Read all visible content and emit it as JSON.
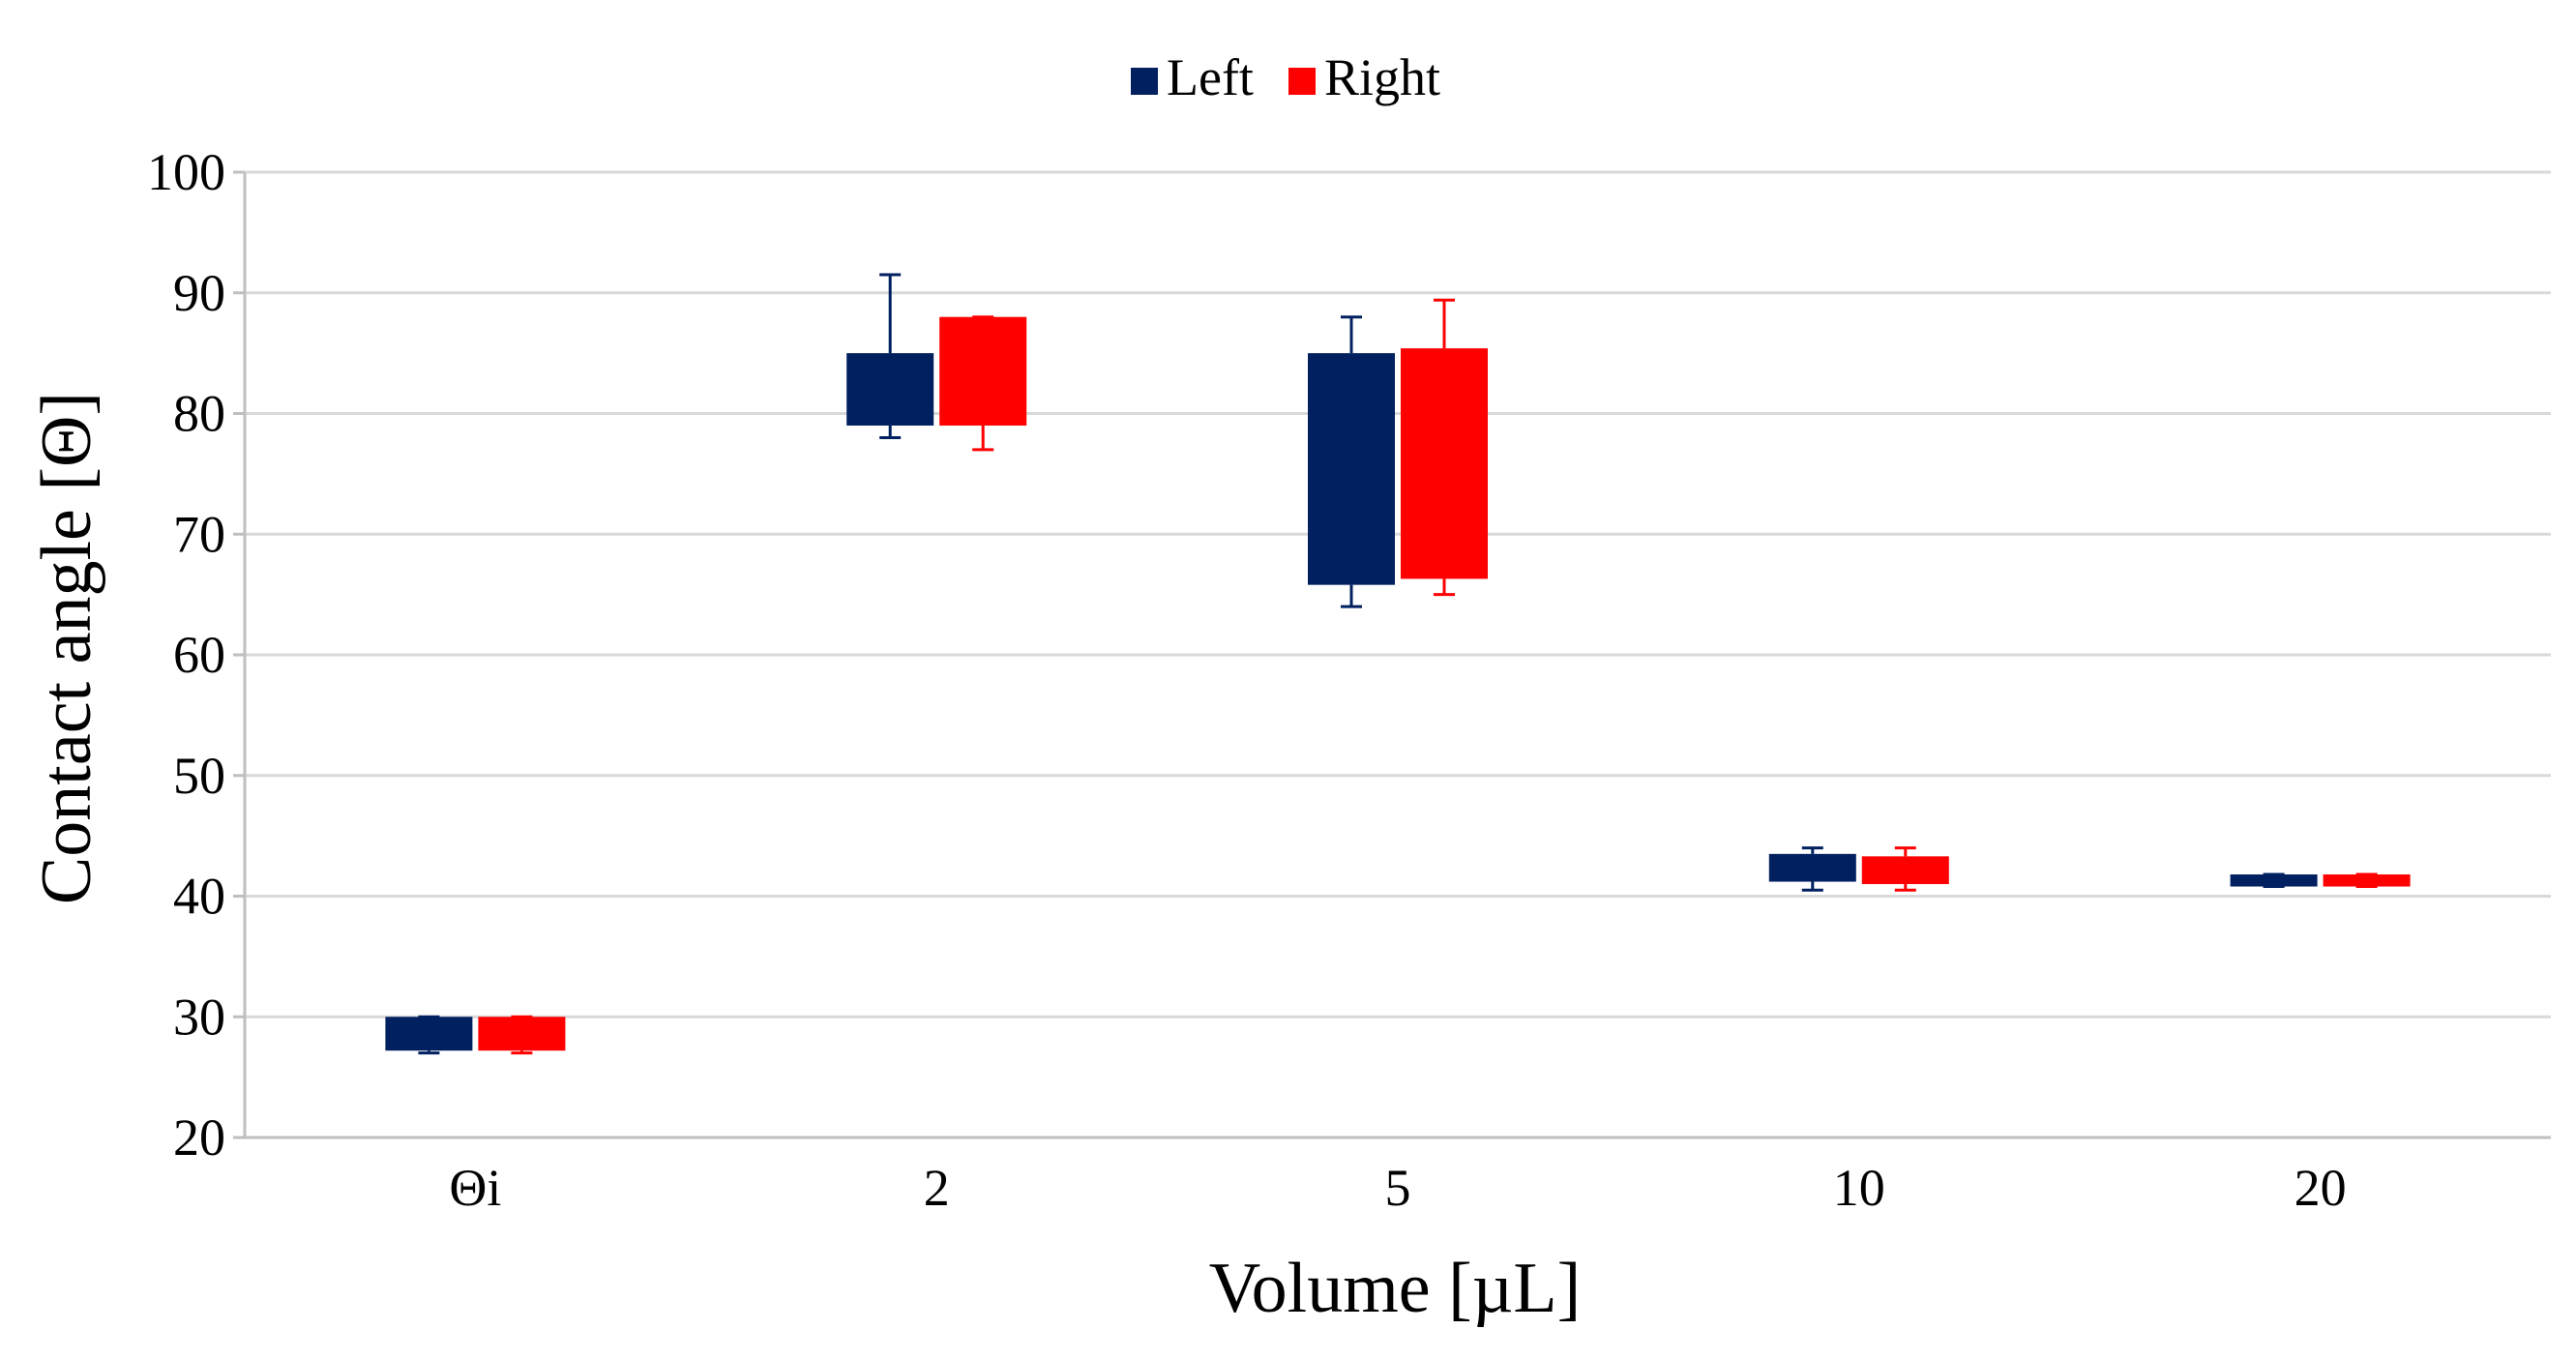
{
  "chart_data": {
    "type": "box",
    "title": "",
    "xlabel": "Volume [µL]",
    "ylabel": "Contact angle [Θ]",
    "ylim": [
      20,
      100
    ],
    "yticks": [
      "20",
      "30",
      "40",
      "50",
      "60",
      "70",
      "80",
      "90",
      "100"
    ],
    "categories": [
      "Θi",
      "2",
      "5",
      "10",
      "20"
    ],
    "grid": true,
    "legend_position": "top-center",
    "series": [
      {
        "name": "Left",
        "color": "#002060",
        "boxes": [
          {
            "min": 27.0,
            "q1": 27.2,
            "q3": 30.0,
            "max": 30.0
          },
          {
            "min": 78.0,
            "q1": 79.0,
            "q3": 85.0,
            "max": 91.5
          },
          {
            "min": 64.0,
            "q1": 65.8,
            "q3": 85.0,
            "max": 88.0
          },
          {
            "min": 40.5,
            "q1": 41.2,
            "q3": 43.5,
            "max": 44.0
          },
          {
            "min": 40.8,
            "q1": 40.8,
            "q3": 41.8,
            "max": 41.8
          }
        ]
      },
      {
        "name": "Right",
        "color": "#ff0000",
        "boxes": [
          {
            "min": 27.0,
            "q1": 27.2,
            "q3": 30.0,
            "max": 30.0
          },
          {
            "min": 77.0,
            "q1": 79.0,
            "q3": 88.0,
            "max": 88.0
          },
          {
            "min": 65.0,
            "q1": 66.3,
            "q3": 85.4,
            "max": 89.4
          },
          {
            "min": 40.5,
            "q1": 41.0,
            "q3": 43.3,
            "max": 44.0
          },
          {
            "min": 40.8,
            "q1": 40.8,
            "q3": 41.8,
            "max": 41.8
          }
        ]
      }
    ]
  }
}
